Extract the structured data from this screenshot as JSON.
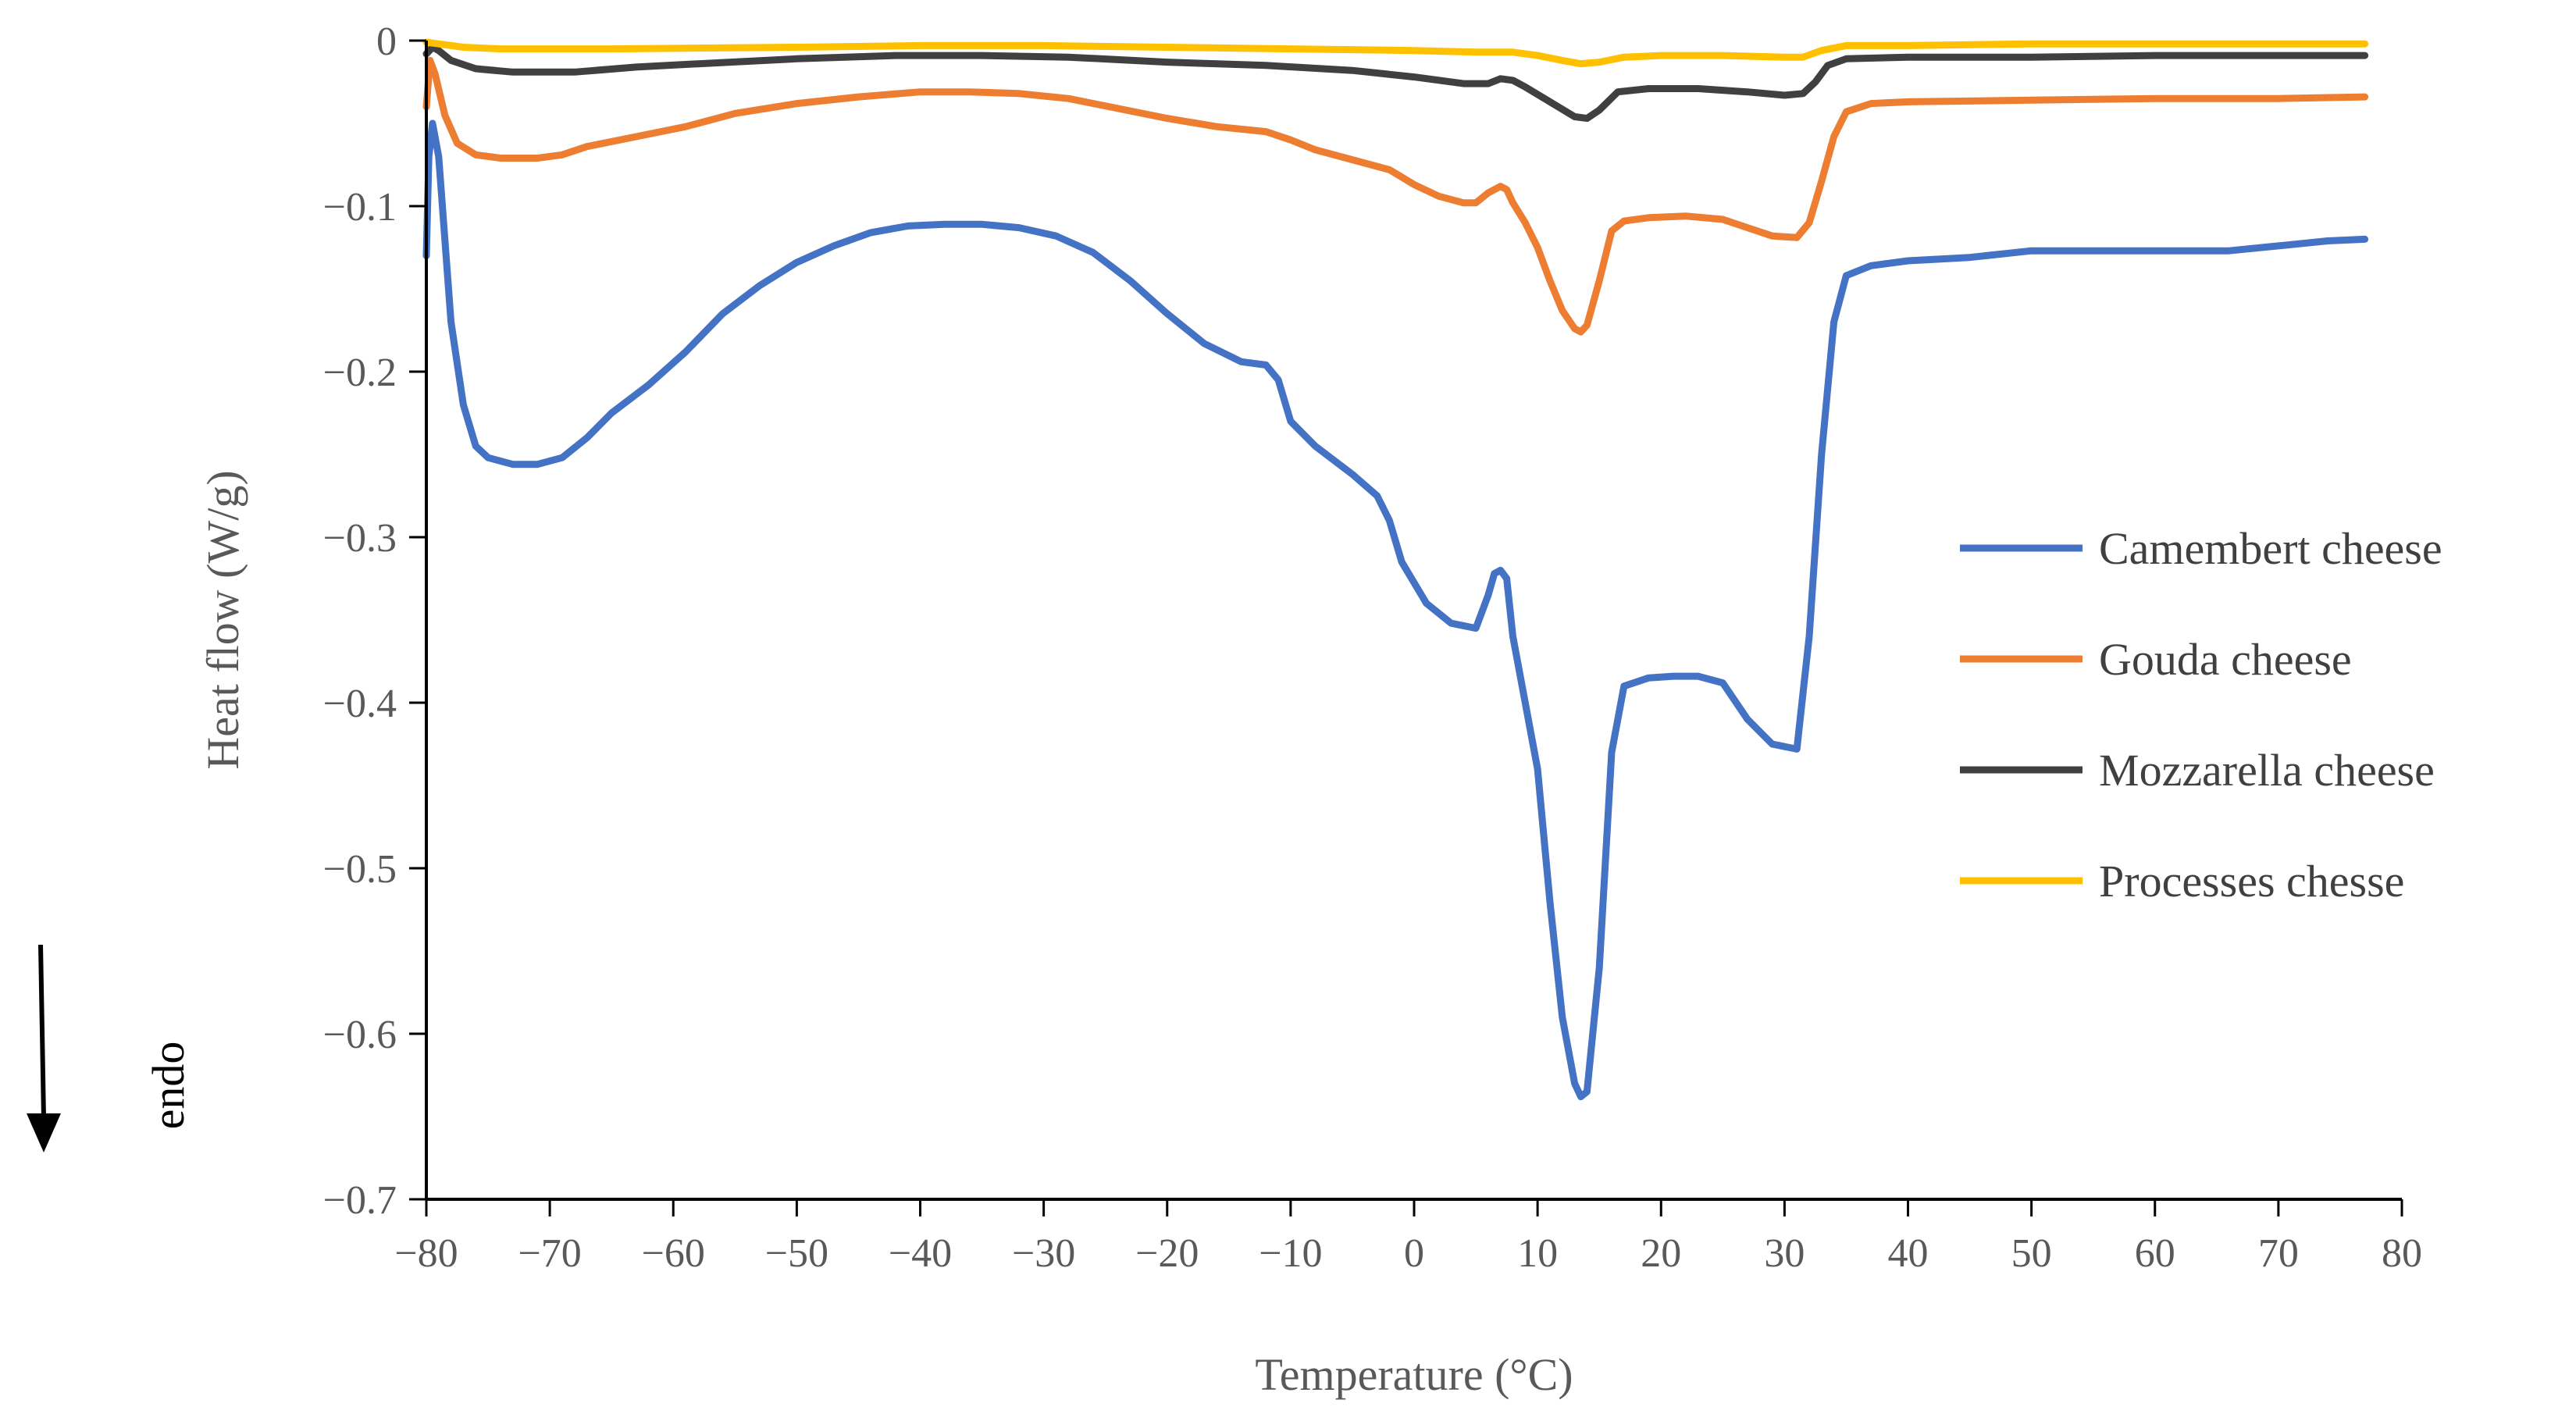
{
  "chart_data": {
    "type": "line",
    "title": "",
    "xlabel": "Temperature (°C)",
    "ylabel": "Heat flow (W/g)",
    "xlim": [
      -80,
      80
    ],
    "ylim": [
      -0.7,
      0
    ],
    "xticks": [
      -80,
      -70,
      -60,
      -50,
      -40,
      -30,
      -20,
      -10,
      0,
      10,
      20,
      30,
      40,
      50,
      60,
      70,
      80
    ],
    "yticks": [
      0,
      -0.1,
      -0.2,
      -0.3,
      -0.4,
      -0.5,
      -0.6,
      -0.7
    ],
    "xtick_labels": [
      "−80",
      "−70",
      "−60",
      "−50",
      "−40",
      "−30",
      "−20",
      "−10",
      "0",
      "10",
      "20",
      "30",
      "40",
      "50",
      "60",
      "70",
      "80"
    ],
    "ytick_labels": [
      "0",
      "−0.1",
      "−0.2",
      "−0.3",
      "−0.4",
      "−0.5",
      "−0.6",
      "−0.7"
    ],
    "grid": false,
    "legend_position": "right",
    "annotation": {
      "text": "endo",
      "arrow": "down"
    },
    "series": [
      {
        "name": "Camembert cheese",
        "color": "#4472C4",
        "points": [
          [
            -80,
            -0.13
          ],
          [
            -79.8,
            -0.07
          ],
          [
            -79.5,
            -0.05
          ],
          [
            -79,
            -0.07
          ],
          [
            -78.5,
            -0.12
          ],
          [
            -78,
            -0.17
          ],
          [
            -77,
            -0.22
          ],
          [
            -76,
            -0.245
          ],
          [
            -75,
            -0.252
          ],
          [
            -73,
            -0.256
          ],
          [
            -71,
            -0.256
          ],
          [
            -69,
            -0.252
          ],
          [
            -67,
            -0.24
          ],
          [
            -65,
            -0.225
          ],
          [
            -62,
            -0.208
          ],
          [
            -59,
            -0.188
          ],
          [
            -56,
            -0.165
          ],
          [
            -53,
            -0.148
          ],
          [
            -50,
            -0.134
          ],
          [
            -47,
            -0.124
          ],
          [
            -44,
            -0.116
          ],
          [
            -41,
            -0.112
          ],
          [
            -38,
            -0.111
          ],
          [
            -35,
            -0.111
          ],
          [
            -32,
            -0.113
          ],
          [
            -29,
            -0.118
          ],
          [
            -26,
            -0.128
          ],
          [
            -23,
            -0.145
          ],
          [
            -20,
            -0.165
          ],
          [
            -17,
            -0.183
          ],
          [
            -14,
            -0.194
          ],
          [
            -12,
            -0.196
          ],
          [
            -11,
            -0.205
          ],
          [
            -10,
            -0.23
          ],
          [
            -8,
            -0.245
          ],
          [
            -5,
            -0.262
          ],
          [
            -3,
            -0.275
          ],
          [
            -2,
            -0.29
          ],
          [
            -1,
            -0.315
          ],
          [
            1,
            -0.34
          ],
          [
            3,
            -0.352
          ],
          [
            5,
            -0.355
          ],
          [
            6,
            -0.335
          ],
          [
            6.5,
            -0.322
          ],
          [
            7,
            -0.32
          ],
          [
            7.5,
            -0.325
          ],
          [
            8,
            -0.36
          ],
          [
            9,
            -0.4
          ],
          [
            10,
            -0.44
          ],
          [
            11,
            -0.52
          ],
          [
            12,
            -0.59
          ],
          [
            13,
            -0.63
          ],
          [
            13.5,
            -0.638
          ],
          [
            14,
            -0.635
          ],
          [
            15,
            -0.56
          ],
          [
            16,
            -0.43
          ],
          [
            17,
            -0.39
          ],
          [
            19,
            -0.385
          ],
          [
            21,
            -0.384
          ],
          [
            23,
            -0.384
          ],
          [
            25,
            -0.388
          ],
          [
            27,
            -0.41
          ],
          [
            29,
            -0.425
          ],
          [
            31,
            -0.428
          ],
          [
            32,
            -0.36
          ],
          [
            33,
            -0.25
          ],
          [
            34,
            -0.17
          ],
          [
            35,
            -0.142
          ],
          [
            37,
            -0.136
          ],
          [
            40,
            -0.133
          ],
          [
            45,
            -0.131
          ],
          [
            50,
            -0.127
          ],
          [
            55,
            -0.127
          ],
          [
            60,
            -0.127
          ],
          [
            66,
            -0.127
          ],
          [
            70,
            -0.124
          ],
          [
            74,
            -0.121
          ],
          [
            77,
            -0.12
          ]
        ]
      },
      {
        "name": "Gouda cheese",
        "color": "#ED7D31",
        "points": [
          [
            -80,
            -0.04
          ],
          [
            -79.7,
            -0.012
          ],
          [
            -79.3,
            -0.02
          ],
          [
            -78.5,
            -0.045
          ],
          [
            -77.5,
            -0.062
          ],
          [
            -76,
            -0.069
          ],
          [
            -74,
            -0.071
          ],
          [
            -71,
            -0.071
          ],
          [
            -69,
            -0.069
          ],
          [
            -67,
            -0.064
          ],
          [
            -63,
            -0.058
          ],
          [
            -59,
            -0.052
          ],
          [
            -55,
            -0.044
          ],
          [
            -50,
            -0.038
          ],
          [
            -45,
            -0.034
          ],
          [
            -40,
            -0.031
          ],
          [
            -36,
            -0.031
          ],
          [
            -32,
            -0.032
          ],
          [
            -28,
            -0.035
          ],
          [
            -24,
            -0.041
          ],
          [
            -20,
            -0.047
          ],
          [
            -16,
            -0.052
          ],
          [
            -12,
            -0.055
          ],
          [
            -10,
            -0.06
          ],
          [
            -8,
            -0.066
          ],
          [
            -5,
            -0.072
          ],
          [
            -2,
            -0.078
          ],
          [
            0,
            -0.087
          ],
          [
            2,
            -0.094
          ],
          [
            4,
            -0.098
          ],
          [
            5,
            -0.098
          ],
          [
            6,
            -0.092
          ],
          [
            7,
            -0.088
          ],
          [
            7.5,
            -0.09
          ],
          [
            8,
            -0.098
          ],
          [
            9,
            -0.11
          ],
          [
            10,
            -0.125
          ],
          [
            11,
            -0.145
          ],
          [
            12,
            -0.163
          ],
          [
            13,
            -0.174
          ],
          [
            13.5,
            -0.176
          ],
          [
            14,
            -0.172
          ],
          [
            15,
            -0.145
          ],
          [
            16,
            -0.115
          ],
          [
            17,
            -0.109
          ],
          [
            19,
            -0.107
          ],
          [
            22,
            -0.106
          ],
          [
            25,
            -0.108
          ],
          [
            27,
            -0.113
          ],
          [
            29,
            -0.118
          ],
          [
            31,
            -0.119
          ],
          [
            32,
            -0.11
          ],
          [
            33,
            -0.085
          ],
          [
            34,
            -0.058
          ],
          [
            35,
            -0.043
          ],
          [
            37,
            -0.038
          ],
          [
            40,
            -0.037
          ],
          [
            50,
            -0.036
          ],
          [
            60,
            -0.035
          ],
          [
            70,
            -0.035
          ],
          [
            77,
            -0.034
          ]
        ]
      },
      {
        "name": "Mozzarella cheese",
        "color": "#404040",
        "points": [
          [
            -80,
            -0.008
          ],
          [
            -79.5,
            -0.004
          ],
          [
            -79,
            -0.006
          ],
          [
            -78,
            -0.012
          ],
          [
            -76,
            -0.017
          ],
          [
            -73,
            -0.019
          ],
          [
            -68,
            -0.019
          ],
          [
            -63,
            -0.016
          ],
          [
            -58,
            -0.014
          ],
          [
            -50,
            -0.011
          ],
          [
            -42,
            -0.009
          ],
          [
            -35,
            -0.009
          ],
          [
            -28,
            -0.01
          ],
          [
            -20,
            -0.013
          ],
          [
            -12,
            -0.015
          ],
          [
            -5,
            -0.018
          ],
          [
            0,
            -0.022
          ],
          [
            4,
            -0.026
          ],
          [
            6,
            -0.026
          ],
          [
            7,
            -0.023
          ],
          [
            8,
            -0.024
          ],
          [
            9,
            -0.028
          ],
          [
            11,
            -0.037
          ],
          [
            13,
            -0.046
          ],
          [
            14,
            -0.047
          ],
          [
            15,
            -0.042
          ],
          [
            16.5,
            -0.031
          ],
          [
            19,
            -0.029
          ],
          [
            23,
            -0.029
          ],
          [
            27,
            -0.031
          ],
          [
            30,
            -0.033
          ],
          [
            31.5,
            -0.032
          ],
          [
            32.5,
            -0.025
          ],
          [
            33.5,
            -0.015
          ],
          [
            35,
            -0.011
          ],
          [
            40,
            -0.01
          ],
          [
            50,
            -0.01
          ],
          [
            60,
            -0.009
          ],
          [
            70,
            -0.009
          ],
          [
            77,
            -0.009
          ]
        ]
      },
      {
        "name": "Processes chesse",
        "color": "#FFC000",
        "points": [
          [
            -80,
            -0.001
          ],
          [
            -79,
            -0.002
          ],
          [
            -77,
            -0.004
          ],
          [
            -74,
            -0.005
          ],
          [
            -65,
            -0.005
          ],
          [
            -50,
            -0.004
          ],
          [
            -40,
            -0.003
          ],
          [
            -30,
            -0.003
          ],
          [
            -20,
            -0.004
          ],
          [
            -10,
            -0.005
          ],
          [
            0,
            -0.006
          ],
          [
            5,
            -0.007
          ],
          [
            8,
            -0.007
          ],
          [
            10,
            -0.009
          ],
          [
            12,
            -0.012
          ],
          [
            13.5,
            -0.014
          ],
          [
            15,
            -0.013
          ],
          [
            17,
            -0.01
          ],
          [
            20,
            -0.009
          ],
          [
            25,
            -0.009
          ],
          [
            30,
            -0.01
          ],
          [
            31.5,
            -0.01
          ],
          [
            33,
            -0.006
          ],
          [
            35,
            -0.003
          ],
          [
            40,
            -0.003
          ],
          [
            50,
            -0.002
          ],
          [
            60,
            -0.002
          ],
          [
            70,
            -0.002
          ],
          [
            77,
            -0.002
          ]
        ]
      }
    ]
  }
}
